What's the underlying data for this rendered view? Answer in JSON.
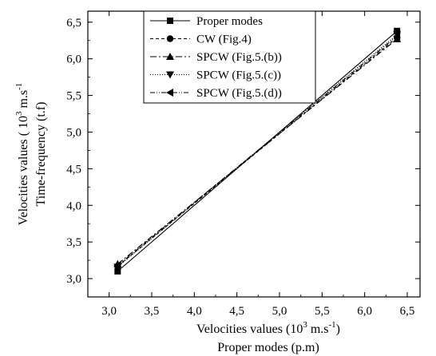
{
  "chart_data": {
    "type": "line",
    "xlabel": {
      "line1_pre": "Velocities values (10",
      "line1_sup": "3",
      "line1_mid": " m.s",
      "line1_sup2": "-1",
      "line1_post": ")",
      "line2": "Proper modes (p.m)"
    },
    "ylabel": {
      "line1_pre": "Velocities values ( 10",
      "line1_sup": "3",
      "line1_mid": " m.s",
      "line1_sup2": "-1",
      "line2": "Time-frequency (t.f)"
    },
    "xlim": [
      2.75,
      6.65
    ],
    "ylim": [
      2.75,
      6.65
    ],
    "x_ticks": [
      "3,0",
      "3,5",
      "4,0",
      "4,5",
      "5,0",
      "5,5",
      "6,0",
      "6,5"
    ],
    "y_ticks": [
      "3,0",
      "3,5",
      "4,0",
      "4,5",
      "5,0",
      "5,5",
      "6,0",
      "6,5"
    ],
    "legend_position": "top-center",
    "series": [
      {
        "name": "Proper modes",
        "marker": "square",
        "dash": "",
        "color": "#000000",
        "points": [
          [
            3.1,
            3.1
          ],
          [
            6.38,
            6.38
          ]
        ]
      },
      {
        "name": "CW (Fig.4)",
        "marker": "circle",
        "dash": "4,3",
        "color": "#000000",
        "points": [
          [
            3.1,
            3.17
          ],
          [
            6.38,
            6.29
          ]
        ]
      },
      {
        "name": "SPCW (Fig.5.(b))",
        "marker": "triangle-up",
        "dash": "8,3,2,3",
        "color": "#000000",
        "points": [
          [
            3.1,
            3.2
          ],
          [
            6.38,
            6.27
          ]
        ]
      },
      {
        "name": "SPCW (Fig.5.(c))",
        "marker": "triangle-down",
        "dash": "1,2",
        "color": "#000000",
        "points": [
          [
            3.1,
            3.16
          ],
          [
            6.38,
            6.33
          ]
        ]
      },
      {
        "name": "SPCW (Fig.5.(d))",
        "marker": "triangle-left",
        "dash": "6,2,1,2,1,2",
        "color": "#000000",
        "points": [
          [
            3.1,
            3.18
          ],
          [
            6.38,
            6.31
          ]
        ]
      }
    ]
  }
}
